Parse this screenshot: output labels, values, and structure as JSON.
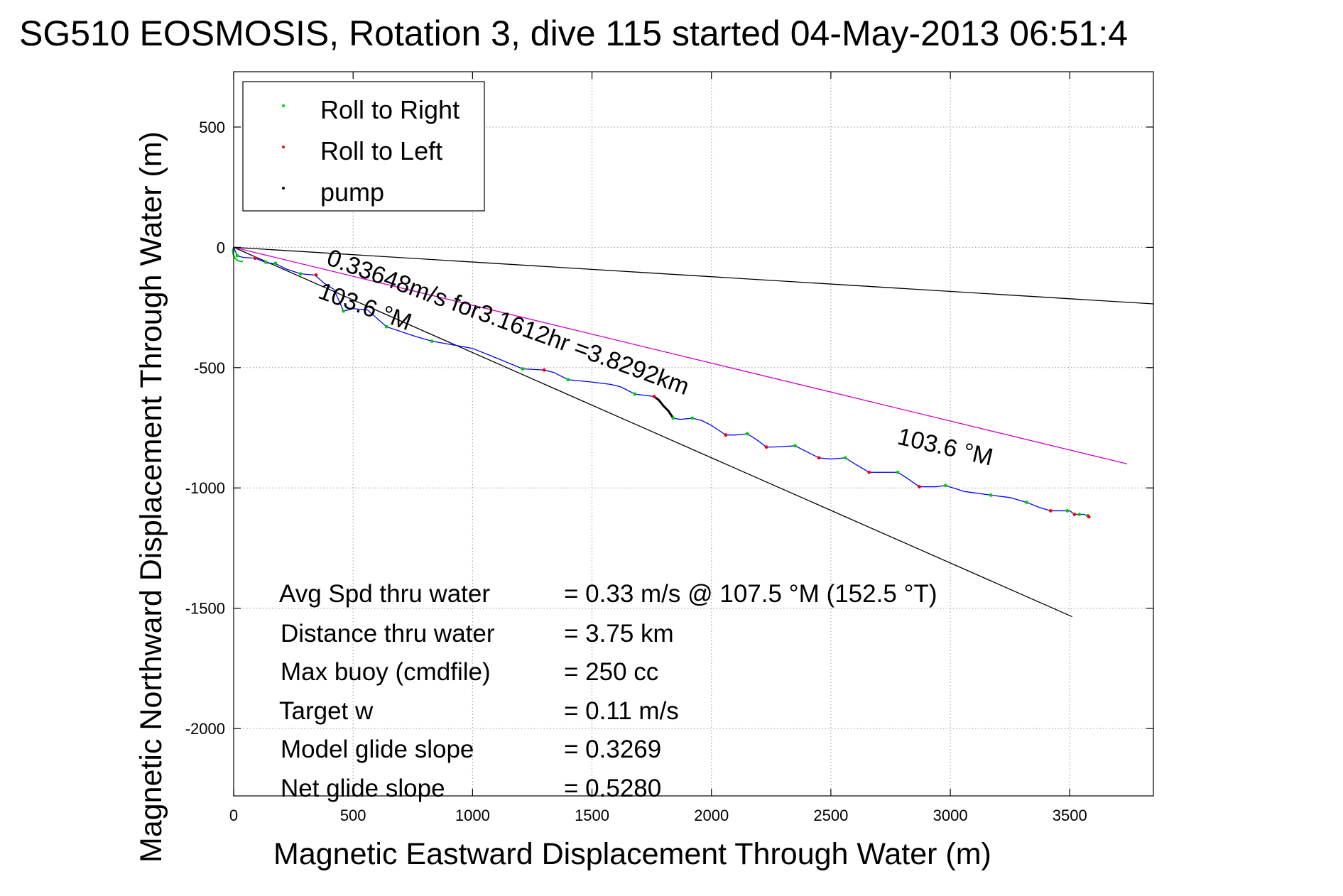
{
  "chart_data": {
    "type": "line",
    "title": "SG510 EOSMOSIS, Rotation 3, dive 115 started 04-May-2013 06:51:4",
    "xlabel": "Magnetic Eastward Displacement Through Water (m)",
    "ylabel": "Magnetic Northward Displacement Through Water (m)",
    "xlim": [
      0,
      3850
    ],
    "ylim": [
      -2280,
      730
    ],
    "xticks": [
      0,
      500,
      1000,
      1500,
      2000,
      2500,
      3000,
      3500
    ],
    "yticks": [
      500,
      0,
      -500,
      -1000,
      -1500,
      -2000
    ],
    "xtick_labels": [
      "0",
      "500",
      "1000",
      "1500",
      "2000",
      "2500",
      "3000",
      "3500"
    ],
    "ytick_labels": [
      "500",
      "0",
      "-500",
      "-1000",
      "-1500",
      "-2000"
    ],
    "grid": true,
    "legend": {
      "placement": "top-left",
      "entries": [
        {
          "label": "Roll to Right",
          "color": "#00cc00"
        },
        {
          "label": "Roll to Left",
          "color": "#ff0000"
        },
        {
          "label": "pump",
          "color": "#000000"
        }
      ]
    },
    "track": {
      "color": "#0000ff",
      "points": [
        [
          0,
          0
        ],
        [
          15,
          -35
        ],
        [
          40,
          -42
        ],
        [
          90,
          -45
        ],
        [
          140,
          -65
        ],
        [
          175,
          -68
        ],
        [
          220,
          -90
        ],
        [
          280,
          -110
        ],
        [
          340,
          -115
        ],
        [
          380,
          -150
        ],
        [
          420,
          -175
        ],
        [
          460,
          -265
        ],
        [
          500,
          -255
        ],
        [
          560,
          -260
        ],
        [
          640,
          -330
        ],
        [
          760,
          -370
        ],
        [
          830,
          -390
        ],
        [
          1000,
          -420
        ],
        [
          1100,
          -460
        ],
        [
          1210,
          -505
        ],
        [
          1300,
          -510
        ],
        [
          1340,
          -520
        ],
        [
          1400,
          -550
        ],
        [
          1500,
          -560
        ],
        [
          1580,
          -570
        ],
        [
          1620,
          -580
        ],
        [
          1680,
          -610
        ],
        [
          1760,
          -620
        ],
        [
          1780,
          -635
        ],
        [
          1800,
          -660
        ],
        [
          1820,
          -680
        ],
        [
          1840,
          -710
        ],
        [
          1870,
          -715
        ],
        [
          1920,
          -710
        ],
        [
          1960,
          -720
        ],
        [
          2000,
          -740
        ],
        [
          2060,
          -780
        ],
        [
          2100,
          -780
        ],
        [
          2150,
          -775
        ],
        [
          2190,
          -800
        ],
        [
          2230,
          -830
        ],
        [
          2260,
          -830
        ],
        [
          2350,
          -825
        ],
        [
          2400,
          -850
        ],
        [
          2450,
          -875
        ],
        [
          2500,
          -880
        ],
        [
          2560,
          -875
        ],
        [
          2600,
          -900
        ],
        [
          2660,
          -935
        ],
        [
          2700,
          -935
        ],
        [
          2780,
          -935
        ],
        [
          2820,
          -960
        ],
        [
          2870,
          -995
        ],
        [
          2940,
          -995
        ],
        [
          2980,
          -990
        ],
        [
          3060,
          -1015
        ],
        [
          3170,
          -1030
        ],
        [
          3250,
          -1040
        ],
        [
          3320,
          -1060
        ],
        [
          3370,
          -1080
        ],
        [
          3420,
          -1095
        ],
        [
          3500,
          -1095
        ],
        [
          3520,
          -1110
        ],
        [
          3560,
          -1110
        ],
        [
          3580,
          -1120
        ]
      ]
    },
    "roll_right_points": [
      [
        15,
        -35
      ],
      [
        90,
        -45
      ],
      [
        135,
        -62
      ],
      [
        175,
        -66
      ],
      [
        280,
        -110
      ],
      [
        460,
        -265
      ],
      [
        640,
        -330
      ],
      [
        830,
        -390
      ],
      [
        1210,
        -505
      ],
      [
        1400,
        -550
      ],
      [
        1680,
        -610
      ],
      [
        1840,
        -710
      ],
      [
        1920,
        -710
      ],
      [
        2060,
        -780
      ],
      [
        2150,
        -775
      ],
      [
        2350,
        -825
      ],
      [
        2560,
        -875
      ],
      [
        2780,
        -935
      ],
      [
        2980,
        -990
      ],
      [
        3170,
        -1030
      ],
      [
        3320,
        -1060
      ],
      [
        3490,
        -1095
      ],
      [
        3540,
        -1110
      ],
      [
        3575,
        -1115
      ]
    ],
    "roll_left_points": [
      [
        90,
        -45
      ],
      [
        345,
        -115
      ],
      [
        1300,
        -510
      ],
      [
        1760,
        -620
      ],
      [
        2060,
        -780
      ],
      [
        2230,
        -830
      ],
      [
        2450,
        -875
      ],
      [
        2660,
        -935
      ],
      [
        2870,
        -995
      ],
      [
        3420,
        -1095
      ],
      [
        3520,
        -1110
      ],
      [
        3580,
        -1120
      ]
    ],
    "pump_segment": [
      [
        1760,
        -620
      ],
      [
        1780,
        -635
      ],
      [
        1800,
        -660
      ],
      [
        1820,
        -680
      ],
      [
        1840,
        -710
      ]
    ],
    "reference_lines": [
      {
        "name": "shallow",
        "color": "#000000",
        "points": [
          [
            0,
            0
          ],
          [
            3850,
            -235
          ]
        ]
      },
      {
        "name": "steep",
        "color": "#000000",
        "points": [
          [
            0,
            0
          ],
          [
            3510,
            -1535
          ]
        ]
      },
      {
        "name": "heading",
        "color": "#cc00cc",
        "points": [
          [
            0,
            0
          ],
          [
            3740,
            -900
          ]
        ]
      }
    ],
    "annotations": {
      "speed_line": "0.33648m/s for3.1612hr =3.8292km",
      "heading_start": "103.6 °M",
      "heading_end": "103.6 °M"
    },
    "stats": [
      {
        "label": "Avg Spd thru water",
        "value": "=  0.33 m/s @ 107.5 °M (152.5 °T)"
      },
      {
        "label": "Distance thru water",
        "value": "=  3.75 km"
      },
      {
        "label": "Max buoy (cmdfile)",
        "value": "= 250 cc"
      },
      {
        "label": "Target w",
        "value": "= 0.11 m/s"
      },
      {
        "label": "Model glide slope",
        "value": "= 0.3269"
      },
      {
        "label": "Net glide slope",
        "value": "= 0.5280"
      }
    ]
  }
}
